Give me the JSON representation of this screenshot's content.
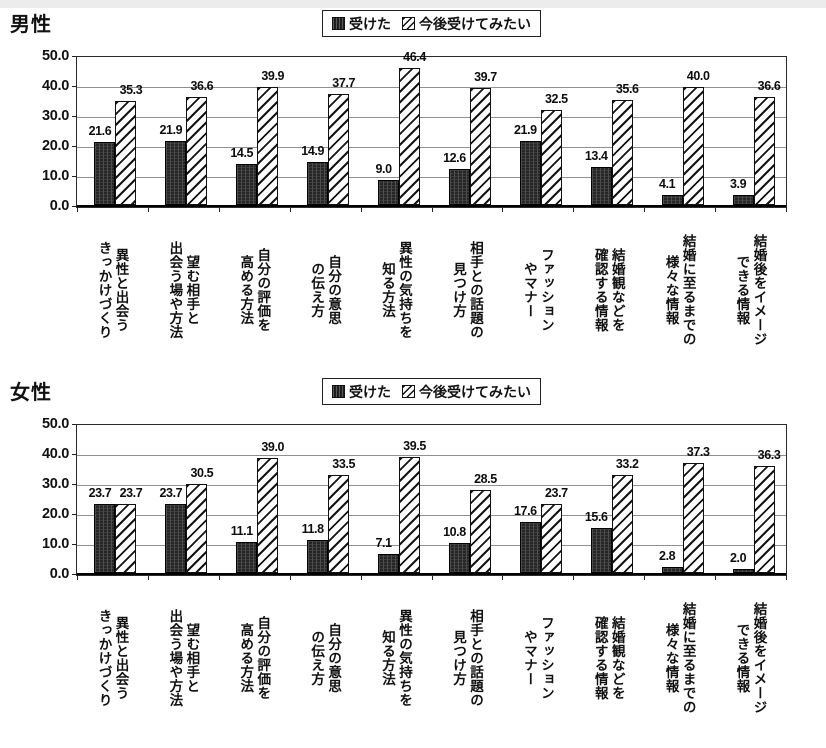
{
  "legend": {
    "received": "受けた",
    "future": "今後受けてみたい"
  },
  "chart_data": [
    {
      "type": "bar",
      "title": "男性",
      "categories": [
        "異性と出会う\nきっかけづくり",
        "望む相手と\n出会う場や方法",
        "自分の評価を\n高める方法",
        "自分の意思\nの伝え方",
        "異性の気持ちを\n知る方法",
        "相手との話題の\n見つけ方",
        "ファッション\nやマナー",
        "結婚観などを\n確認する情報",
        "結婚に至るまでの\n様々な情報",
        "結婚後をイメージ\nできる情報"
      ],
      "series": [
        {
          "name": "受けた",
          "values": [
            21.6,
            21.9,
            14.5,
            14.9,
            9.0,
            12.6,
            21.9,
            13.4,
            4.1,
            3.9
          ]
        },
        {
          "name": "今後受けてみたい",
          "values": [
            35.3,
            36.6,
            39.9,
            37.7,
            46.4,
            39.7,
            32.5,
            35.6,
            40.0,
            36.6
          ]
        }
      ],
      "ylim": [
        0,
        50
      ],
      "ytick_labels": [
        "0.0",
        "10.0",
        "20.0",
        "30.0",
        "40.0",
        "50.0"
      ],
      "grid": true,
      "legend_position": "top-center",
      "value_labels": "one-decimal"
    },
    {
      "type": "bar",
      "title": "女性",
      "categories": [
        "異性と出会う\nきっかけづくり",
        "望む相手と\n出会う場や方法",
        "自分の評価を\n高める方法",
        "自分の意思\nの伝え方",
        "異性の気持ちを\n知る方法",
        "相手との話題の\n見つけ方",
        "ファッション\nやマナー",
        "結婚観などを\n確認する情報",
        "結婚に至るまでの\n様々な情報",
        "結婚後をイメージ\nできる情報"
      ],
      "series": [
        {
          "name": "受けた",
          "values": [
            23.7,
            23.7,
            11.1,
            11.8,
            7.1,
            10.8,
            17.6,
            15.6,
            2.8,
            2.0
          ]
        },
        {
          "name": "今後受けてみたい",
          "values": [
            23.7,
            30.5,
            39.0,
            33.5,
            39.5,
            28.5,
            23.7,
            33.2,
            37.3,
            36.3
          ]
        }
      ],
      "ylim": [
        0,
        50
      ],
      "ytick_labels": [
        "0.0",
        "10.0",
        "20.0",
        "30.0",
        "40.0",
        "50.0"
      ],
      "grid": true,
      "legend_position": "top-center",
      "value_labels": "one-decimal"
    }
  ]
}
